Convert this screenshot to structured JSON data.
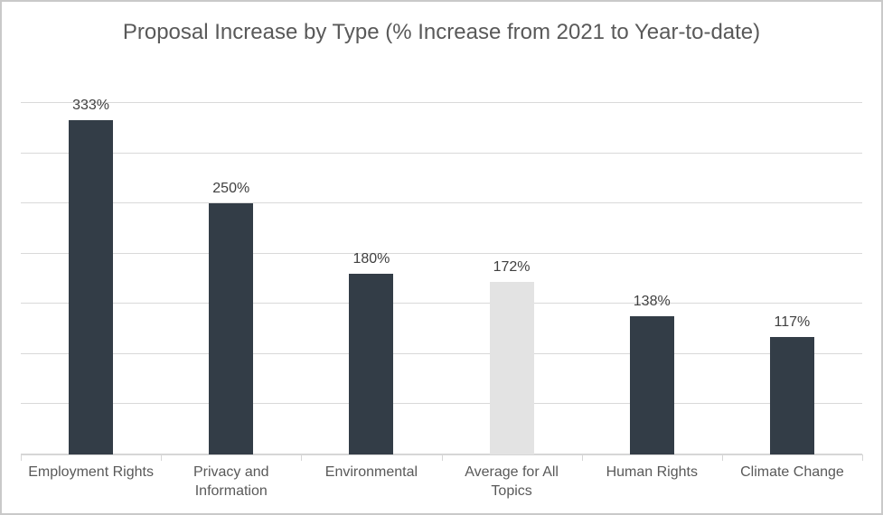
{
  "chart_data": {
    "type": "bar",
    "title": "Proposal Increase by Type (% Increase from 2021 to Year-to-date)",
    "categories": [
      "Employment Rights",
      "Privacy and Information",
      "Environmental",
      "Average for All Topics",
      "Human Rights",
      "Climate Change"
    ],
    "values": [
      333,
      250,
      180,
      172,
      138,
      117
    ],
    "data_labels": [
      "333%",
      "250%",
      "180%",
      "172%",
      "138%",
      "117%"
    ],
    "highlight_index": 3,
    "xlabel": "",
    "ylabel": "",
    "ylim": [
      0,
      350
    ],
    "gridline_step": 50,
    "grid_on": true,
    "legend_position": "none",
    "y_tick_labels_shown": false,
    "colors": {
      "bar": "#333d47",
      "highlight_bar": "#e3e3e3",
      "gridline": "#d9d9d9",
      "axis_line": "#d6d6d6",
      "title_text": "#595959",
      "data_label_text": "#404040",
      "category_label_text": "#595959",
      "border": "#c9c9c9",
      "background": "#ffffff"
    }
  }
}
